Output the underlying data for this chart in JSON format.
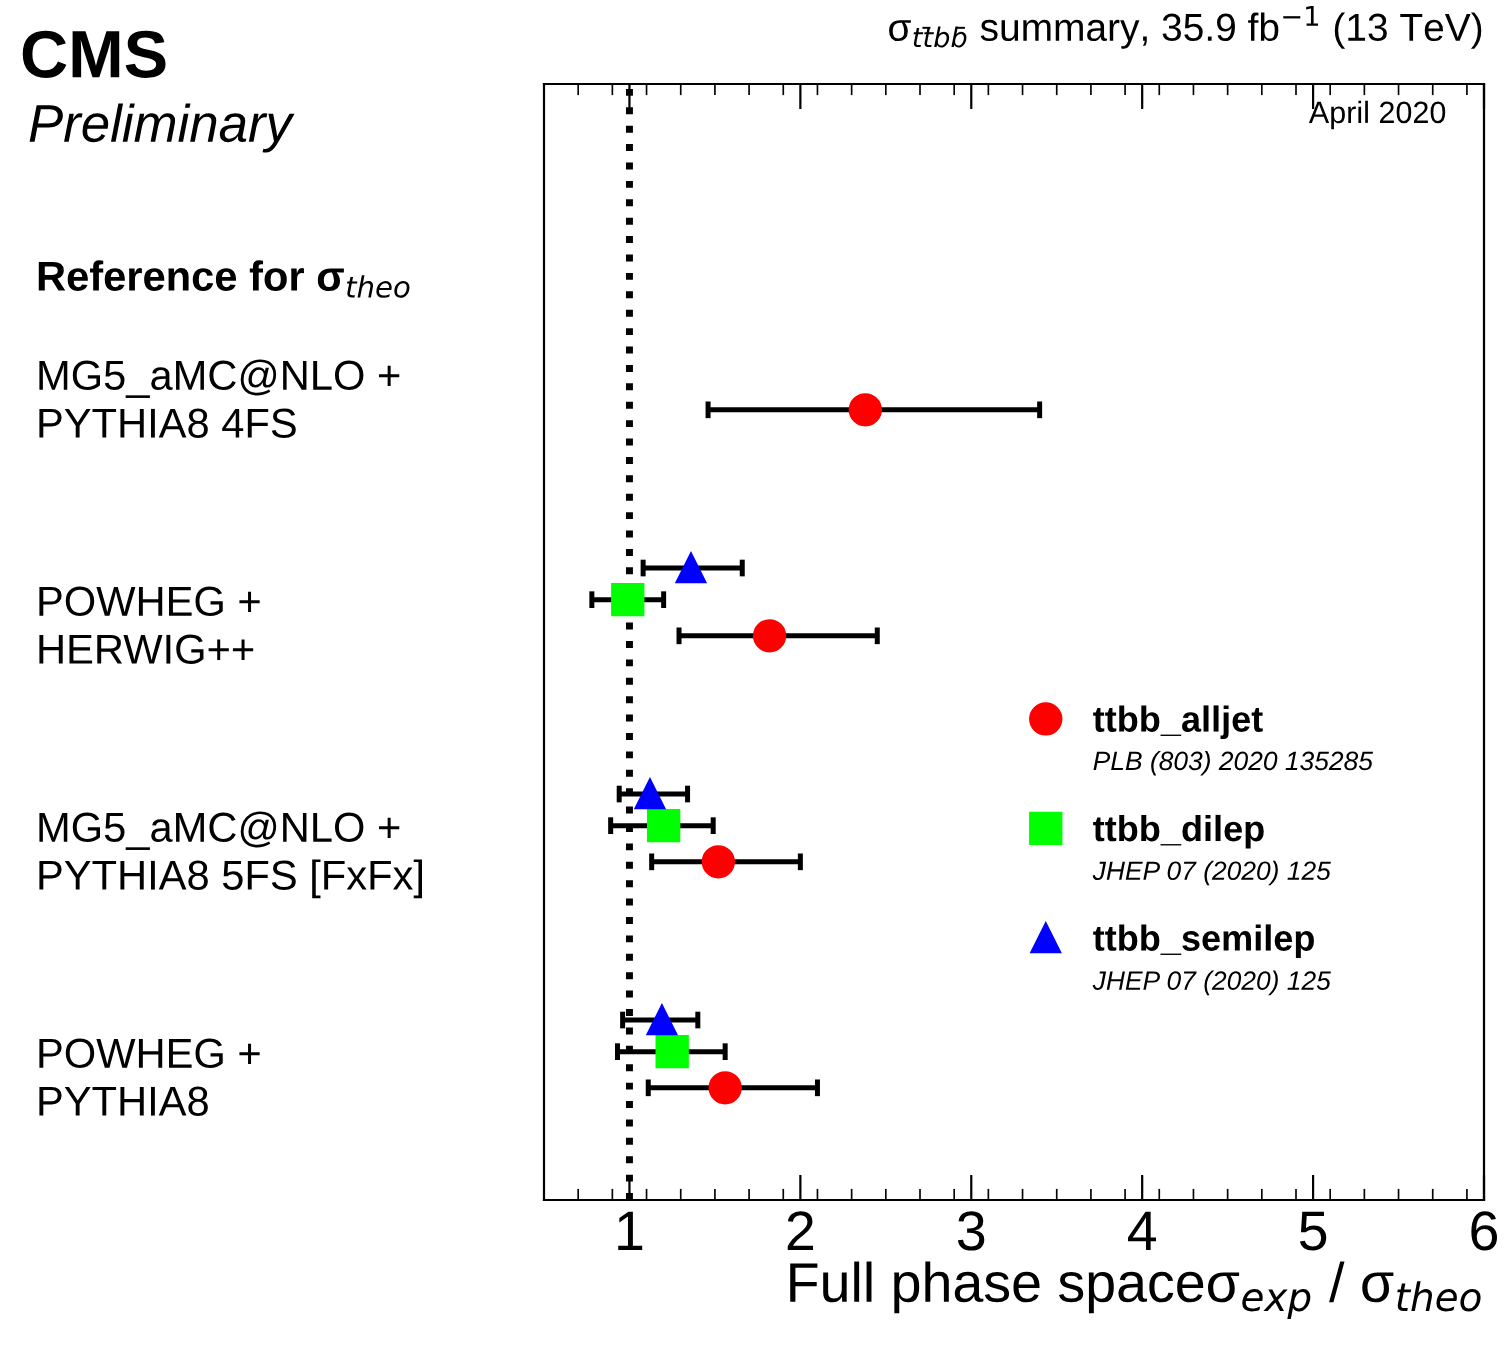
{
  "chart_data": {
    "type": "scatter",
    "orientation": "horizontal",
    "title": "σ$_{tt̄bb̄}$ summary, 35.9 fb$^{−1}$ (13 TeV)",
    "xlabel": "Full phase spaceσ$_{exp}$ / σ$_{theo}$",
    "ylabel": "Reference for σ$_{theo}$",
    "categories": [
      "MG5_aMC@NLO +\nPYTHIA8 4FS",
      "POWHEG +\nHERWIG++",
      "MG5_aMC@NLO +\nPYTHIA8 5FS [FxFx]",
      "POWHEG +\nPYTHIA8"
    ],
    "series": [
      {
        "name": "ttbb_alljet",
        "color": "#ff0000",
        "marker": "circle",
        "values": [
          2.38,
          1.82,
          1.52,
          1.56
        ],
        "errors": [
          [
            1.46,
            3.4
          ],
          [
            1.29,
            2.45
          ],
          [
            1.13,
            2.0
          ],
          [
            1.11,
            2.1
          ]
        ]
      },
      {
        "name": "ttbb_dilep",
        "color": "#00ff00",
        "marker": "square",
        "values": [
          null,
          0.99,
          1.2,
          1.25
        ],
        "errors": [
          null,
          [
            0.78,
            1.2
          ],
          [
            0.89,
            1.49
          ],
          [
            0.93,
            1.56
          ]
        ]
      },
      {
        "name": "ttbb_semilep",
        "color": "#0000ff",
        "marker": "triangle",
        "values": [
          null,
          1.36,
          1.12,
          1.19
        ],
        "errors": [
          null,
          [
            1.08,
            1.66
          ],
          [
            0.94,
            1.34
          ],
          [
            0.96,
            1.4
          ]
        ]
      }
    ],
    "xlim": [
      0.5,
      6
    ],
    "xticks": [
      1,
      2,
      3,
      4,
      5,
      6
    ],
    "ref_lines": [
      {
        "axis": "x",
        "value": 1,
        "color": "#000000",
        "line_style": "dotted"
      }
    ],
    "legend": "right",
    "grid": false,
    "annotations": [
      "CMS",
      "Preliminary",
      "April 2020",
      "PLB (803) 2020 135285",
      "JHEP 07 (2020) 125",
      "JHEP 07 (2020) 125"
    ]
  }
}
